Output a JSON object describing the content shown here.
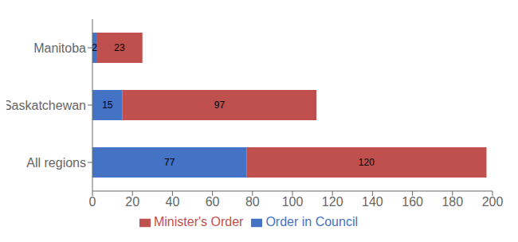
{
  "chart_data": {
    "type": "bar",
    "orientation": "horizontal",
    "stacked": true,
    "categories": [
      "All regions",
      "Saskatchewan",
      "Manitoba"
    ],
    "series": [
      {
        "name": "Order in Council",
        "color": "#4472C4",
        "values": [
          77,
          15,
          2
        ]
      },
      {
        "name": "Minister's Order",
        "color": "#C0504D",
        "values": [
          120,
          97,
          23
        ]
      }
    ],
    "xlim": [
      0,
      200
    ],
    "xticks": [
      0,
      20,
      40,
      60,
      80,
      100,
      120,
      140,
      160,
      180,
      200
    ],
    "data_labels": true,
    "legend": "bottom"
  }
}
